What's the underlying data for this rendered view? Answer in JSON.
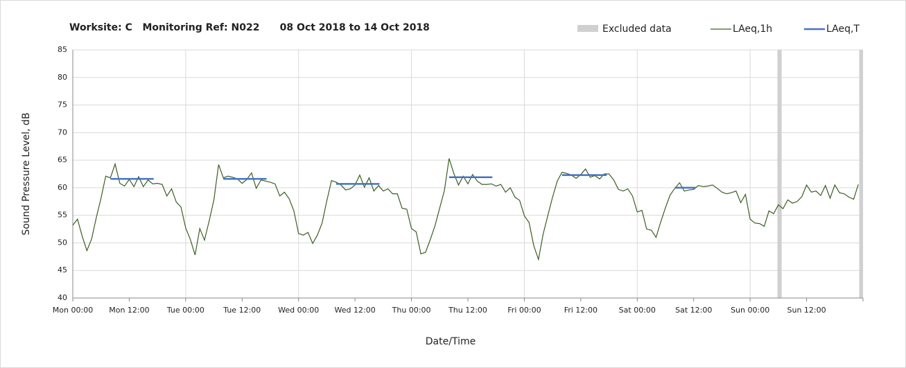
{
  "chart_data": {
    "type": "line",
    "title": "Worksite: C   Monitoring Ref: N022      08 Oct 2018 to 14 Oct 2018",
    "xlabel": "Date/Time",
    "ylabel": "Sound Pressure Level, dB",
    "xlim": [
      0,
      168
    ],
    "ylim": [
      40,
      85
    ],
    "yticks": [
      40,
      45,
      50,
      55,
      60,
      65,
      70,
      75,
      80,
      85
    ],
    "xticks": [
      {
        "value": 0,
        "label": "Mon 00:00"
      },
      {
        "value": 12,
        "label": "Mon 12:00"
      },
      {
        "value": 24,
        "label": "Tue 00:00"
      },
      {
        "value": 36,
        "label": "Tue 12:00"
      },
      {
        "value": 48,
        "label": "Wed 00:00"
      },
      {
        "value": 60,
        "label": "Wed 12:00"
      },
      {
        "value": 72,
        "label": "Thu 00:00"
      },
      {
        "value": 84,
        "label": "Thu 12:00"
      },
      {
        "value": 96,
        "label": "Fri 00:00"
      },
      {
        "value": 108,
        "label": "Fri 12:00"
      },
      {
        "value": 120,
        "label": "Sat 00:00"
      },
      {
        "value": 132,
        "label": "Sat 12:00"
      },
      {
        "value": 144,
        "label": "Sun 00:00"
      },
      {
        "value": 156,
        "label": "Sun 12:00"
      }
    ],
    "grid": true,
    "x": [
      0,
      1,
      2,
      3,
      4,
      5,
      6,
      7,
      8,
      9,
      10,
      11,
      12,
      13,
      14,
      15,
      16,
      17,
      18,
      19,
      20,
      21,
      22,
      23,
      24,
      25,
      26,
      27,
      28,
      29,
      30,
      31,
      32,
      33,
      34,
      35,
      36,
      37,
      38,
      39,
      40,
      41,
      42,
      43,
      44,
      45,
      46,
      47,
      48,
      49,
      50,
      51,
      52,
      53,
      54,
      55,
      56,
      57,
      58,
      59,
      60,
      61,
      62,
      63,
      64,
      65,
      66,
      67,
      68,
      69,
      70,
      71,
      72,
      73,
      74,
      75,
      76,
      77,
      78,
      79,
      80,
      81,
      82,
      83,
      84,
      85,
      86,
      87,
      88,
      89,
      90,
      91,
      92,
      93,
      94,
      95,
      96,
      97,
      98,
      99,
      100,
      101,
      102,
      103,
      104,
      105,
      106,
      107,
      108,
      109,
      110,
      111,
      112,
      113,
      114,
      115,
      116,
      117,
      118,
      119,
      120,
      121,
      122,
      123,
      124,
      125,
      126,
      127,
      128,
      129,
      130,
      131,
      132,
      133,
      134,
      135,
      136,
      137,
      138,
      139,
      140,
      141,
      142,
      143,
      144,
      145,
      146,
      147,
      148,
      149,
      150,
      151,
      152,
      153,
      154,
      155,
      156,
      157,
      158,
      159,
      160,
      161,
      162,
      163,
      164,
      165,
      166,
      167
    ],
    "series": [
      {
        "name": "LAeq,1h",
        "color": "#3a5e22",
        "values": [
          53.2,
          54.3,
          51.2,
          48.6,
          50.7,
          54.6,
          58.1,
          62.1,
          61.8,
          64.3,
          60.8,
          60.3,
          61.5,
          60.2,
          62.0,
          60.2,
          61.4,
          60.7,
          60.8,
          60.6,
          58.5,
          59.8,
          57.4,
          56.5,
          52.7,
          50.6,
          47.8,
          52.6,
          50.5,
          54.0,
          57.8,
          64.2,
          61.8,
          62.1,
          61.9,
          61.6,
          60.8,
          61.5,
          62.7,
          59.9,
          61.4,
          61.2,
          61.0,
          60.7,
          58.5,
          59.2,
          58.0,
          55.8,
          51.7,
          51.4,
          51.9,
          49.9,
          51.4,
          53.6,
          57.6,
          61.3,
          61.0,
          60.5,
          59.6,
          59.8,
          60.5,
          62.3,
          60.1,
          61.8,
          59.4,
          60.4,
          59.4,
          59.8,
          58.9,
          58.9,
          56.3,
          56.1,
          52.6,
          52.0,
          48.0,
          48.3,
          50.6,
          53.1,
          56.3,
          59.5,
          65.3,
          62.6,
          60.5,
          62.1,
          60.7,
          62.4,
          61.2,
          60.6,
          60.6,
          60.7,
          60.3,
          60.6,
          59.2,
          60.0,
          58.3,
          57.7,
          54.9,
          53.7,
          49.5,
          47.0,
          51.6,
          55.0,
          58.3,
          61.2,
          62.8,
          62.6,
          62.3,
          61.7,
          62.4,
          63.4,
          61.9,
          62.2,
          61.6,
          62.5,
          62.5,
          61.4,
          59.7,
          59.4,
          59.8,
          58.5,
          55.6,
          55.9,
          52.5,
          52.3,
          51.0,
          53.8,
          56.4,
          58.7,
          59.9,
          60.9,
          59.4,
          59.6,
          59.7,
          60.4,
          60.2,
          60.3,
          60.5,
          59.9,
          59.2,
          58.9,
          59.1,
          59.4,
          57.3,
          58.8,
          54.3,
          53.6,
          53.5,
          53.0,
          55.8,
          55.3,
          56.9,
          56.2,
          57.8,
          57.2,
          57.5,
          58.4,
          60.5,
          59.2,
          59.4,
          58.6,
          60.4,
          58.1,
          60.5,
          59.1,
          58.9,
          58.3,
          57.9,
          60.6
        ]
      }
    ],
    "period_levels": {
      "name": "LAeq,T",
      "color": "#4472c4",
      "start": [
        8,
        32,
        56,
        80,
        104,
        128
      ],
      "end": [
        17.2,
        41.2,
        65.2,
        89.2,
        113.5,
        132.4
      ],
      "values": [
        61.6,
        61.6,
        60.7,
        61.9,
        62.3,
        60.0
      ]
    },
    "excluded": {
      "name": "Excluded data",
      "color": "#d0d0d0",
      "start": [
        149.8,
        167.2
      ],
      "end": [
        150.7,
        168
      ]
    }
  }
}
